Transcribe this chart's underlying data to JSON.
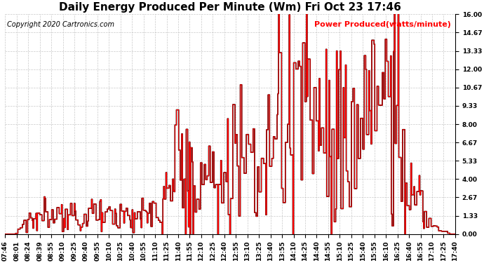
{
  "title": "Daily Energy Produced Per Minute (Wm) Fri Oct 23 17:46",
  "copyright": "Copyright 2020 Cartronics.com",
  "legend_label": "Power Produced(watts/minute)",
  "ylabel_right_ticks": [
    0.0,
    1.33,
    2.67,
    4.0,
    5.33,
    6.67,
    8.0,
    9.33,
    10.67,
    12.0,
    13.33,
    14.67,
    16.0
  ],
  "ylim": [
    0,
    16
  ],
  "background_color": "#ffffff",
  "grid_color": "#bbbbbb",
  "line_color_red": "#ff0000",
  "line_color_black": "#000000",
  "title_fontsize": 11,
  "copyright_fontsize": 7,
  "legend_fontsize": 8,
  "tick_fontsize": 6.5,
  "x_tick_labels": [
    "07:46",
    "08:01",
    "08:24",
    "08:39",
    "08:55",
    "09:10",
    "09:25",
    "09:40",
    "09:55",
    "10:10",
    "10:25",
    "10:40",
    "10:55",
    "11:10",
    "11:25",
    "11:40",
    "11:55",
    "12:10",
    "12:25",
    "12:40",
    "12:55",
    "13:10",
    "13:25",
    "13:40",
    "13:55",
    "14:10",
    "14:25",
    "14:40",
    "14:55",
    "15:10",
    "15:25",
    "15:40",
    "15:55",
    "16:10",
    "16:25",
    "16:40",
    "16:55",
    "17:10",
    "17:25",
    "17:40"
  ]
}
